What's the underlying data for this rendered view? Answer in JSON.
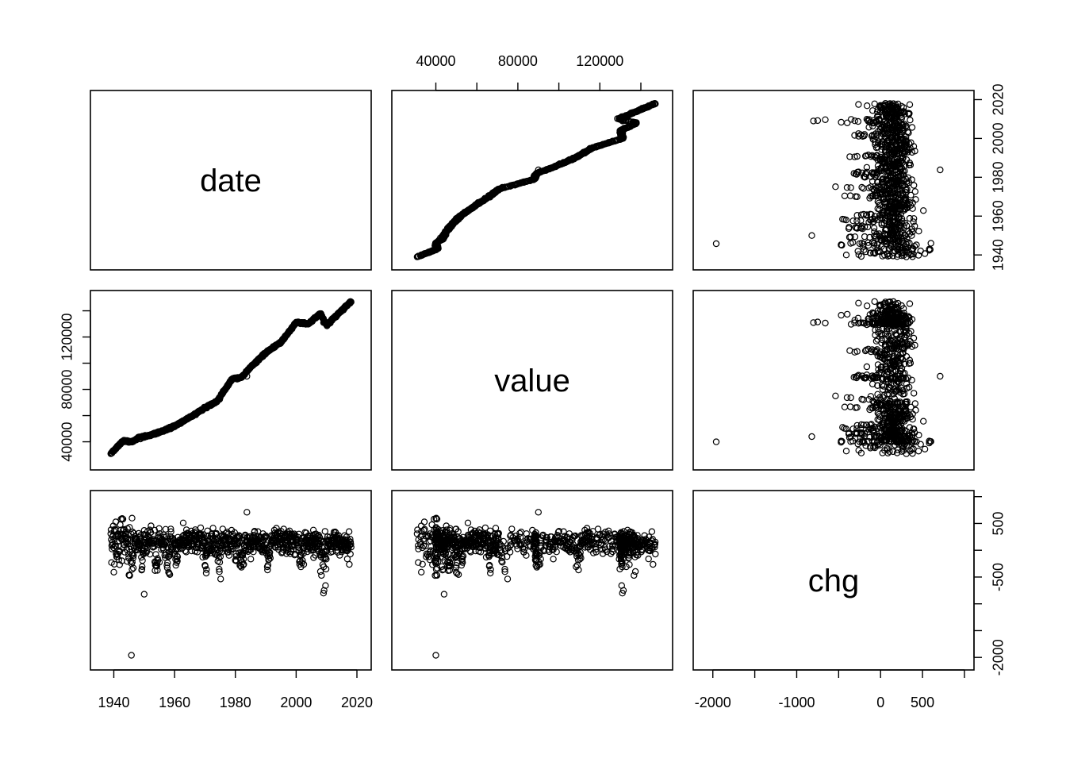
{
  "chart_data": {
    "type": "scatter",
    "variables": [
      {
        "name": "date",
        "label": "date",
        "range": [
          1936,
          2021
        ],
        "ticks": [
          1940,
          1960,
          1980,
          2000,
          2020
        ],
        "tick_labels": [
          "1940",
          "1960",
          "1980",
          "2000",
          "2020"
        ]
      },
      {
        "name": "value",
        "label": "value",
        "range": [
          24000,
          150000
        ],
        "ticks": [
          40000,
          60000,
          80000,
          100000,
          120000,
          140000
        ],
        "tick_labels": [
          "40000",
          "",
          "80000",
          "",
          "120000",
          ""
        ]
      },
      {
        "name": "chg",
        "label": "chg",
        "range": [
          -2100,
          980
        ],
        "ticks": [
          -2000,
          -1500,
          -1000,
          -500,
          0,
          500,
          1000
        ],
        "tick_labels": [
          "-2000",
          "",
          "-1000",
          "",
          "0",
          "500",
          ""
        ],
        "tick_labels_right": [
          "-2000",
          "",
          "",
          "-500",
          "",
          "500",
          ""
        ]
      }
    ],
    "series_summary": {
      "date_value_trend": [
        [
          1939,
          31000
        ],
        [
          1943,
          40500
        ],
        [
          1946,
          40000
        ],
        [
          1948,
          43000
        ],
        [
          1952,
          45000
        ],
        [
          1957,
          49000
        ],
        [
          1960,
          52000
        ],
        [
          1966,
          60000
        ],
        [
          1970,
          66000
        ],
        [
          1974,
          71000
        ],
        [
          1979,
          88000
        ],
        [
          1982,
          89000
        ],
        [
          1985,
          97000
        ],
        [
          1990,
          108000
        ],
        [
          1995,
          116000
        ],
        [
          2000,
          131000
        ],
        [
          2004,
          130000
        ],
        [
          2008,
          138000
        ],
        [
          2010,
          129000
        ],
        [
          2014,
          138000
        ],
        [
          2018,
          147000
        ]
      ],
      "chg_outliers": [
        {
          "date": 1945.8,
          "value": 40000,
          "chg": -1960
        },
        {
          "date": 1983.8,
          "value": 90000,
          "chg": 710
        },
        {
          "date": 1946.0,
          "value": 40200,
          "chg": 600
        },
        {
          "date": 2009.0,
          "value": 131000,
          "chg": -800
        },
        {
          "date": 2009.2,
          "value": 131500,
          "chg": -750
        },
        {
          "date": 1950.0,
          "value": 44000,
          "chg": -820
        }
      ]
    },
    "grid": false,
    "legend": "none"
  }
}
